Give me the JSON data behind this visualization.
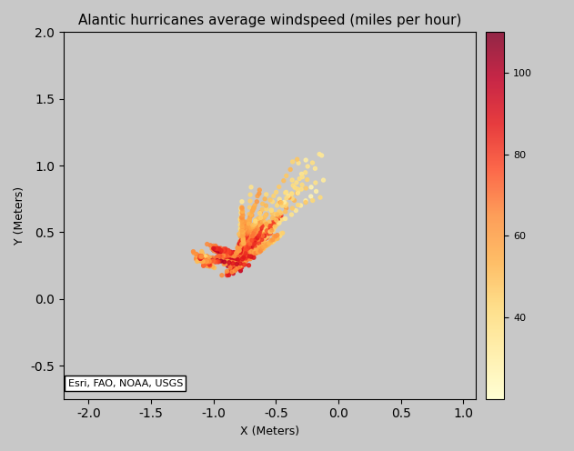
{
  "title": "Alantic hurricanes average windspeed (miles per hour)",
  "xlabel": "X (Meters)",
  "ylabel": "Y (Meters)",
  "xlim": [
    -22000000.0,
    11000000.0
  ],
  "ylim": [
    -7500000.0,
    20000000.0
  ],
  "cmap": "YlOrRd",
  "vmin": 20,
  "vmax": 110,
  "colorbar_ticks": [
    40,
    60,
    80,
    100
  ],
  "background_color": "#c8c8c8",
  "map_land_color": "#e8e8e8",
  "map_ocean_color": "#b0d0d0",
  "attribution": "Esri, FAO, NOAA, USGS",
  "title_fontsize": 11,
  "axis_label_fontsize": 9
}
